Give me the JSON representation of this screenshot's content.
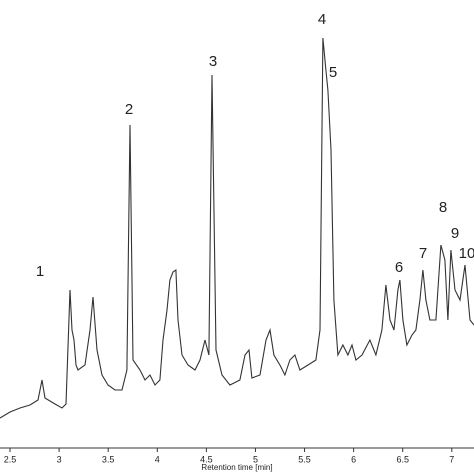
{
  "chart_data": {
    "type": "line",
    "x_label": "Retention time [min]",
    "peak_labels": [
      "1",
      "2",
      "3",
      "4",
      "5",
      "6",
      "7",
      "8",
      "9",
      "10"
    ],
    "xlim": [
      2.398,
      7.226
    ],
    "ylim": [
      0,
      418
    ],
    "xticks": [
      2.5,
      3,
      3.5,
      4,
      4.5,
      5,
      5.5,
      6,
      6.5,
      7
    ],
    "series": [
      {
        "color": "#333333",
        "x": [
          2.398,
          2.5,
          2.602,
          2.704,
          2.785,
          2.826,
          2.856,
          2.958,
          3.03,
          3.07,
          3.111,
          3.131,
          3.152,
          3.172,
          3.192,
          3.264,
          3.315,
          3.345,
          3.386,
          3.437,
          3.498,
          3.569,
          3.641,
          3.691,
          3.722,
          3.753,
          3.824,
          3.875,
          3.926,
          3.977,
          4.027,
          4.058,
          4.099,
          4.129,
          4.16,
          4.19,
          4.211,
          4.252,
          4.313,
          4.384,
          4.435,
          4.486,
          4.526,
          4.557,
          4.598,
          4.659,
          4.74,
          4.842,
          4.893,
          4.934,
          4.964,
          5.046,
          5.107,
          5.148,
          5.188,
          5.249,
          5.3,
          5.351,
          5.402,
          5.453,
          5.535,
          5.616,
          5.657,
          5.687,
          5.718,
          5.738,
          5.769,
          5.799,
          5.84,
          5.891,
          5.942,
          5.983,
          6.023,
          6.085,
          6.166,
          6.227,
          6.288,
          6.329,
          6.37,
          6.411,
          6.451,
          6.471,
          6.502,
          6.543,
          6.594,
          6.634,
          6.675,
          6.706,
          6.736,
          6.777,
          6.838,
          6.889,
          6.93,
          6.96,
          6.991,
          7.032,
          7.083,
          7.134,
          7.185,
          7.226
        ],
        "values": [
          30,
          36,
          40,
          43,
          48,
          68,
          50,
          44,
          40,
          44,
          158,
          118,
          108,
          83,
          78,
          83,
          118,
          151,
          98,
          73,
          63,
          58,
          58,
          78,
          323,
          88,
          78,
          68,
          73,
          63,
          68,
          108,
          138,
          168,
          176,
          178,
          128,
          93,
          83,
          78,
          88,
          108,
          93,
          373,
          98,
          73,
          63,
          68,
          93,
          98,
          70,
          73,
          108,
          118,
          93,
          83,
          73,
          88,
          93,
          78,
          83,
          88,
          118,
          410,
          378,
          358,
          298,
          148,
          93,
          103,
          93,
          103,
          88,
          93,
          108,
          93,
          118,
          163,
          128,
          118,
          158,
          168,
          128,
          103,
          113,
          118,
          148,
          178,
          148,
          128,
          128,
          203,
          188,
          128,
          198,
          158,
          148,
          183,
          128,
          123
        ]
      }
    ]
  }
}
